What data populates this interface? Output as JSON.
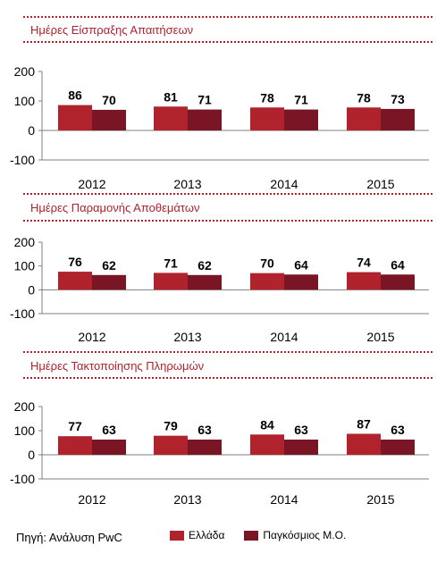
{
  "colors": {
    "greece": "#b0222c",
    "global": "#7a1525",
    "title": "#b0222c"
  },
  "footer": {
    "source": "Πηγή: Ανάλυση PwC",
    "legend": [
      {
        "label": "Ελλάδα",
        "color": "#b0222c"
      },
      {
        "label": "Παγκόσμιος Μ.Ο.",
        "color": "#7a1525"
      }
    ]
  },
  "chart_data": [
    {
      "type": "bar",
      "title": "Ημέρες Είσπραξης Απαιτήσεων",
      "categories": [
        "2012",
        "2013",
        "2014",
        "2015"
      ],
      "ylim": [
        -100,
        200
      ],
      "yticks": [
        "200",
        "100",
        "0",
        "-100"
      ],
      "series": [
        {
          "name": "Ελλάδα",
          "values": [
            86,
            81,
            78,
            78
          ]
        },
        {
          "name": "Παγκόσμιος Μ.Ο.",
          "values": [
            70,
            71,
            71,
            73
          ]
        }
      ]
    },
    {
      "type": "bar",
      "title": "Ημέρες Παραμονής Αποθεμάτων",
      "categories": [
        "2012",
        "2013",
        "2014",
        "2015"
      ],
      "ylim": [
        -100,
        200
      ],
      "yticks": [
        "200",
        "100",
        "0",
        "-100"
      ],
      "series": [
        {
          "name": "Ελλάδα",
          "values": [
            76,
            71,
            70,
            74
          ]
        },
        {
          "name": "Παγκόσμιος Μ.Ο.",
          "values": [
            62,
            62,
            64,
            64
          ]
        }
      ]
    },
    {
      "type": "bar",
      "title": "Ημέρες Τακτοποίησης Πληρωμών",
      "categories": [
        "2012",
        "2013",
        "2014",
        "2015"
      ],
      "ylim": [
        -100,
        200
      ],
      "yticks": [
        "200",
        "100",
        "0",
        "-100"
      ],
      "series": [
        {
          "name": "Ελλάδα",
          "values": [
            77,
            79,
            84,
            87
          ]
        },
        {
          "name": "Παγκόσμιος Μ.Ο.",
          "values": [
            63,
            63,
            63,
            63
          ]
        }
      ]
    }
  ]
}
